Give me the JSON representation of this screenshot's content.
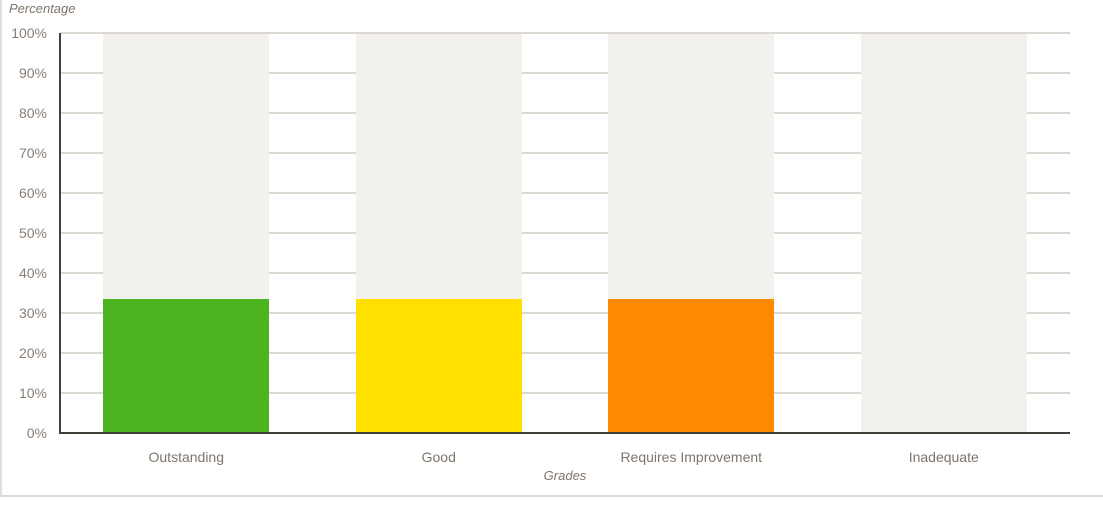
{
  "page": {
    "background": "#ffffff",
    "container_border_left": "#e2dfda",
    "container_border_bottom": "#d9d9d9"
  },
  "chart_data": {
    "type": "bar",
    "title": "",
    "ylabel": "Percentage",
    "xlabel": "Grades",
    "categories": [
      "Outstanding",
      "Good",
      "Requires Improvement",
      "Inadequate"
    ],
    "values": [
      33.5,
      33.5,
      33.5,
      0
    ],
    "bar_colors": [
      "#4cb41e",
      "#ffe000",
      "#fd8a00",
      null
    ],
    "ylim": [
      0,
      100
    ],
    "ytick_step": 10,
    "ytick_labels": [
      "0%",
      "10%",
      "20%",
      "30%",
      "40%",
      "50%",
      "60%",
      "70%",
      "80%",
      "90%",
      "100%"
    ],
    "grid": true,
    "legend_position": "none",
    "background_columns": {
      "enabled": true,
      "color": "#f2f1ed"
    },
    "colors": {
      "axis_line": "#453f39",
      "gridline": "#ddd8d1",
      "tick_text": "#8a7f73",
      "category_text": "#7f7569",
      "axis_title_text": "#7f7569"
    }
  }
}
